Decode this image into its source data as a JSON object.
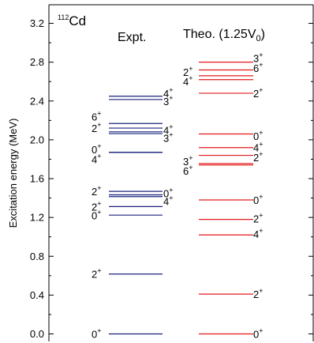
{
  "chart_data": {
    "type": "level-scheme",
    "nucleus": {
      "mass": "112",
      "symbol": "Cd"
    },
    "ylabel": "Excitation energy (MeV)",
    "ylim": [
      -0.08,
      3.3
    ],
    "yticks": [
      "0.0",
      "0.4",
      "0.8",
      "1.2",
      "1.6",
      "2.0",
      "2.4",
      "2.8",
      "3.2"
    ],
    "colors": {
      "expt": "#1a237e",
      "theo": "#e31a1c",
      "axis": "#000000"
    },
    "series": [
      {
        "name": "Expt.",
        "levels": [
          {
            "e": 0.0,
            "J": "0",
            "p": "+",
            "side": "left",
            "ly": 0.0
          },
          {
            "e": 0.617,
            "J": "2",
            "p": "+",
            "side": "left",
            "ly": 0.617
          },
          {
            "e": 1.224,
            "J": "0",
            "p": "+",
            "side": "left",
            "ly": 1.22
          },
          {
            "e": 1.312,
            "J": "2",
            "p": "+",
            "side": "left",
            "ly": 1.31
          },
          {
            "e": 1.415,
            "J": "4",
            "p": "+",
            "side": "right",
            "ly": 1.37
          },
          {
            "e": 1.433,
            "J": "0",
            "p": "+",
            "side": "right",
            "ly": 1.45
          },
          {
            "e": 1.469,
            "J": "2",
            "p": "+",
            "side": "left",
            "ly": 1.47
          },
          {
            "e": 1.871,
            "J": "0",
            "p": "+",
            "side": "left",
            "ly": 1.9
          },
          {
            "e": 1.871,
            "J": "4",
            "p": "+",
            "side": "left",
            "ly": 1.8
          },
          {
            "e": 2.064,
            "J": "3",
            "p": "+",
            "side": "right",
            "ly": 2.02
          },
          {
            "e": 2.082,
            "J": "4",
            "p": "+",
            "side": "right",
            "ly": 2.1
          },
          {
            "e": 2.121,
            "J": "2",
            "p": "+",
            "side": "left",
            "ly": 2.12
          },
          {
            "e": 2.168,
            "J": "6",
            "p": "+",
            "side": "left",
            "ly": 2.24
          },
          {
            "e": 2.415,
            "J": "3",
            "p": "+",
            "side": "right",
            "ly": 2.4
          },
          {
            "e": 2.449,
            "J": "4",
            "p": "+",
            "side": "right",
            "ly": 2.48
          }
        ]
      },
      {
        "name": "Theo. (1.25V0)",
        "levels": [
          {
            "e": 0.0,
            "J": "0",
            "p": "+",
            "side": "right",
            "ly": 0.0
          },
          {
            "e": 0.41,
            "J": "2",
            "p": "+",
            "side": "right",
            "ly": 0.41
          },
          {
            "e": 1.02,
            "J": "4",
            "p": "+",
            "side": "right",
            "ly": 1.03
          },
          {
            "e": 1.18,
            "J": "2",
            "p": "+",
            "side": "right",
            "ly": 1.19
          },
          {
            "e": 1.38,
            "J": "0",
            "p": "+",
            "side": "right",
            "ly": 1.38
          },
          {
            "e": 1.74,
            "J": "6",
            "p": "+",
            "side": "left",
            "ly": 1.68
          },
          {
            "e": 1.755,
            "J": "3",
            "p": "+",
            "side": "left",
            "ly": 1.78
          },
          {
            "e": 1.84,
            "J": "2",
            "p": "+",
            "side": "right",
            "ly": 1.82
          },
          {
            "e": 1.92,
            "J": "4",
            "p": "+",
            "side": "right",
            "ly": 1.92
          },
          {
            "e": 2.06,
            "J": "0",
            "p": "+",
            "side": "right",
            "ly": 2.04
          },
          {
            "e": 2.48,
            "J": "2",
            "p": "+",
            "side": "right",
            "ly": 2.48
          },
          {
            "e": 2.62,
            "J": "4",
            "p": "+",
            "side": "left",
            "ly": 2.6
          },
          {
            "e": 2.66,
            "J": "2",
            "p": "+",
            "side": "left",
            "ly": 2.7
          },
          {
            "e": 2.72,
            "J": "6",
            "p": "+",
            "side": "right",
            "ly": 2.74
          },
          {
            "e": 2.8,
            "J": "3",
            "p": "+",
            "side": "right",
            "ly": 2.84
          }
        ]
      }
    ],
    "header_expt": "Expt.",
    "header_theo": {
      "prefix": "Theo. (1.25V",
      "sub": "0",
      "suffix": ")"
    }
  }
}
